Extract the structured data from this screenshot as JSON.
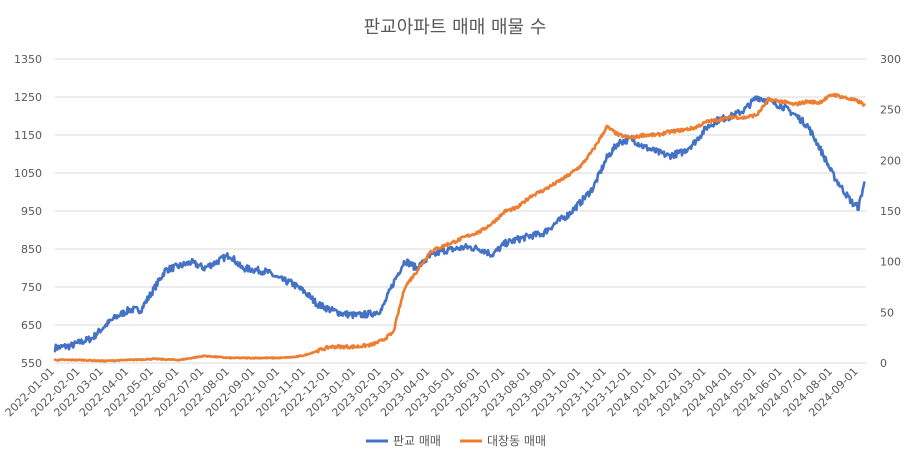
{
  "chart_data": {
    "type": "line",
    "title": "판교아파트 매매 매물 수",
    "xlabel": "",
    "ylabel": "",
    "y_left": {
      "min": 550,
      "max": 1350,
      "ticks": [
        "550",
        "650",
        "750",
        "850",
        "950",
        "1050",
        "1150",
        "1250",
        "1350"
      ]
    },
    "y_right": {
      "min": 0,
      "max": 300,
      "ticks": [
        "0",
        "50",
        "100",
        "150",
        "200",
        "250",
        "300"
      ]
    },
    "x_ticks": [
      "2022-01-01",
      "2022-02-01",
      "2022-03-01",
      "2022-04-01",
      "2022-05-01",
      "2022-06-01",
      "2022-07-01",
      "2022-08-01",
      "2022-09-01",
      "2022-10-01",
      "2022-11-01",
      "2022-12-01",
      "2023-01-01",
      "2023-02-01",
      "2023-03-01",
      "2023-04-01",
      "2023-05-01",
      "2023-06-01",
      "2023-07-01",
      "2023-08-01",
      "2023-09-01",
      "2023-10-01",
      "2023-11-01",
      "2023-12-01",
      "2024-01-01",
      "2024-02-01",
      "2024-03-01",
      "2024-04-01",
      "2024-05-01",
      "2024-06-01",
      "2024-07-01",
      "2024-08-01",
      "2024-09-01"
    ],
    "grid": true,
    "legend_position": "bottom",
    "series": [
      {
        "name": "판교 매매",
        "axis": "left",
        "color": "#4472C4",
        "x": [
          "2022-01-01",
          "2022-01-20",
          "2022-02-01",
          "2022-02-15",
          "2022-03-01",
          "2022-03-15",
          "2022-04-01",
          "2022-04-15",
          "2022-05-01",
          "2022-05-15",
          "2022-06-01",
          "2022-06-15",
          "2022-07-01",
          "2022-07-15",
          "2022-08-01",
          "2022-08-15",
          "2022-09-01",
          "2022-09-15",
          "2022-10-01",
          "2022-10-15",
          "2022-11-01",
          "2022-11-15",
          "2022-12-01",
          "2022-12-15",
          "2023-01-01",
          "2023-01-20",
          "2023-02-01",
          "2023-02-15",
          "2023-03-01",
          "2023-03-15",
          "2023-04-01",
          "2023-04-15",
          "2023-05-01",
          "2023-05-15",
          "2023-06-01",
          "2023-06-15",
          "2023-07-01",
          "2023-07-15",
          "2023-08-01",
          "2023-08-15",
          "2023-09-01",
          "2023-09-15",
          "2023-10-01",
          "2023-10-15",
          "2023-11-01",
          "2023-11-15",
          "2023-12-01",
          "2023-12-15",
          "2024-01-01",
          "2024-01-15",
          "2024-02-01",
          "2024-02-15",
          "2024-03-01",
          "2024-03-15",
          "2024-04-01",
          "2024-04-15",
          "2024-05-01",
          "2024-05-15",
          "2024-06-01",
          "2024-06-15",
          "2024-07-01",
          "2024-07-15",
          "2024-08-01",
          "2024-08-15",
          "2024-08-25",
          "2024-09-01",
          "2024-09-08"
        ],
        "y": [
          590,
          595,
          605,
          615,
          645,
          670,
          690,
          690,
          745,
          795,
          805,
          815,
          800,
          815,
          835,
          800,
          795,
          790,
          770,
          760,
          735,
          705,
          690,
          680,
          675,
          680,
          690,
          760,
          820,
          800,
          830,
          845,
          850,
          855,
          850,
          835,
          865,
          875,
          885,
          890,
          920,
          940,
          975,
          1010,
          1090,
          1130,
          1140,
          1120,
          1105,
          1095,
          1105,
          1130,
          1170,
          1190,
          1200,
          1215,
          1250,
          1240,
          1225,
          1205,
          1175,
          1120,
          1045,
          1000,
          970,
          960,
          1025
        ]
      },
      {
        "name": "대장동 매매",
        "axis": "right",
        "color": "#ED7D31",
        "x": [
          "2022-01-01",
          "2022-02-01",
          "2022-03-01",
          "2022-04-01",
          "2022-05-01",
          "2022-06-01",
          "2022-07-01",
          "2022-08-01",
          "2022-09-01",
          "2022-10-01",
          "2022-10-20",
          "2022-11-01",
          "2022-11-15",
          "2022-12-01",
          "2023-01-01",
          "2023-01-20",
          "2023-02-01",
          "2023-02-15",
          "2023-03-01",
          "2023-03-15",
          "2023-04-01",
          "2023-04-15",
          "2023-05-01",
          "2023-05-15",
          "2023-06-01",
          "2023-06-15",
          "2023-07-01",
          "2023-07-15",
          "2023-08-01",
          "2023-08-15",
          "2023-09-01",
          "2023-09-15",
          "2023-10-01",
          "2023-10-15",
          "2023-11-01",
          "2023-11-15",
          "2023-12-01",
          "2023-12-15",
          "2024-01-01",
          "2024-01-15",
          "2024-02-01",
          "2024-02-15",
          "2024-03-01",
          "2024-03-15",
          "2024-04-01",
          "2024-04-15",
          "2024-05-01",
          "2024-05-15",
          "2024-06-01",
          "2024-06-15",
          "2024-07-01",
          "2024-07-15",
          "2024-08-01",
          "2024-08-15",
          "2024-09-01",
          "2024-09-08"
        ],
        "y": [
          3,
          3,
          2,
          3,
          4,
          3,
          7,
          5,
          5,
          5,
          6,
          8,
          12,
          16,
          16,
          18,
          22,
          30,
          75,
          90,
          110,
          115,
          120,
          125,
          130,
          138,
          150,
          153,
          165,
          170,
          178,
          185,
          195,
          210,
          233,
          225,
          222,
          225,
          225,
          228,
          230,
          232,
          238,
          240,
          243,
          242,
          245,
          260,
          258,
          255,
          258,
          257,
          265,
          262,
          258,
          255
        ]
      }
    ]
  }
}
